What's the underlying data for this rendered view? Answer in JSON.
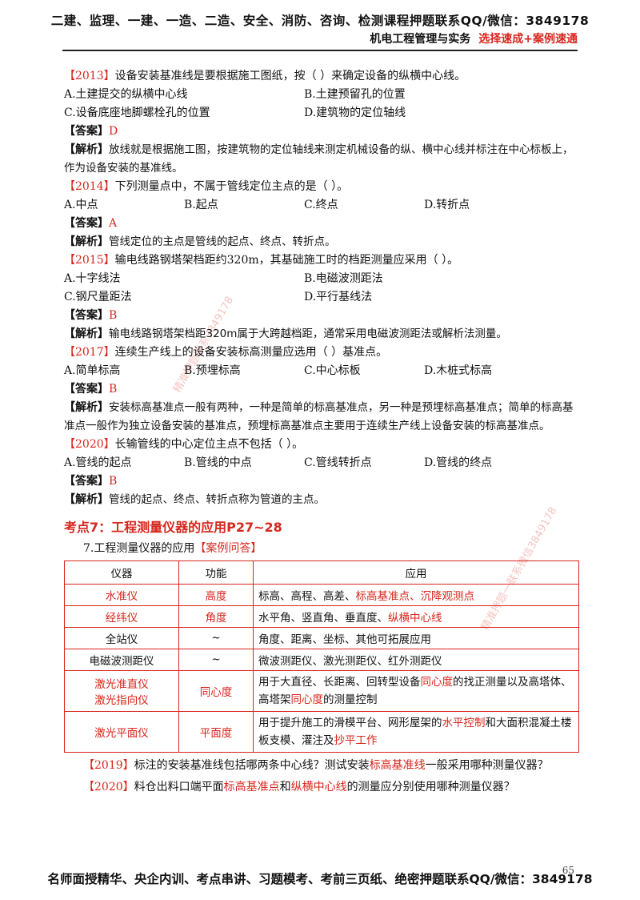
{
  "header": {
    "line1": "二建、监理、一建、一造、二造、安全、消防、咨询、检测课程押题联系QQ/微信：3849178",
    "subject": "机电工程管理与实务",
    "tagline": "选择速成+案例速通"
  },
  "q2013": {
    "year": "【2013】",
    "stem": "设备安装基准线是要根据施工图纸，按（      ）来确定设备的纵横中心线。",
    "a": "A.土建提交的纵横中心线",
    "b": "B.土建预留孔的位置",
    "c": "C.设备底座地脚螺栓孔的位置",
    "d": "D.建筑物的定位轴线",
    "ans_label": "【答案】",
    "ans": "D",
    "exp_label": "【解析】",
    "exp": "放线就是根据施工图，按建筑物的定位轴线来测定机械设备的纵、横中心线并标注在中心标板上，作为设备安装的基准线。"
  },
  "q2014": {
    "year": "【2014】",
    "stem": "下列测量点中，不属于管线定位主点的是（      ）。",
    "a": "A.中点",
    "b": "B.起点",
    "c": "C.终点",
    "d": "D.转折点",
    "ans_label": "【答案】",
    "ans": "A",
    "exp_label": "【解析】",
    "exp": "管线定位的主点是管线的起点、终点、转折点。"
  },
  "q2015": {
    "year": "【2015】",
    "stem": "输电线路钢塔架档距约320m，其基础施工时的档距测量应采用（      ）。",
    "a": "A.十字线法",
    "b": "B.电磁波测距法",
    "c": "C.钢尺量距法",
    "d": "D.平行基线法",
    "ans_label": "【答案】",
    "ans": "B",
    "exp_label": "【解析】",
    "exp": "输电线路钢塔架档距320m属于大跨越档距，通常采用电磁波测距法或解析法测量。"
  },
  "q2017": {
    "year": "【2017】",
    "stem": "连续生产线上的设备安装标高测量应选用（      ）基准点。",
    "a": "A.简单标高",
    "b": "B.预埋标高",
    "c": "C.中心标板",
    "d": "D.木桩式标高",
    "ans_label": "【答案】",
    "ans": "B",
    "exp_label": "【解析】",
    "exp": "安装标高基准点一般有两种，一种是简单的标高基准点，另一种是预埋标高基准点；简单的标高基准点一般作为独立设备安装的基准点，预埋标高基准点主要用于连续生产线上设备安装的标高基准点。"
  },
  "q2020": {
    "year": "【2020】",
    "stem": "长输管线的中心定位主点不包括（      ）。",
    "a": "A.管线的起点",
    "b": "B.管线的中点",
    "c": "C.管线转折点",
    "d": "D.管线的终点",
    "ans_label": "【答案】",
    "ans": "B",
    "exp_label": "【解析】",
    "exp": "管线的起点、终点、转折点称为管道的主点。"
  },
  "section": {
    "title": "考点7：工程测量仪器的应用P27~28",
    "sub_prefix": "7.工程测量仪器的应用",
    "sub_tag": "【案例问答】"
  },
  "table": {
    "headers": [
      "仪器",
      "功能",
      "应用"
    ],
    "rows": [
      {
        "inst": "水准仪",
        "func": "高度",
        "app_plain": "标高、高程、高差、",
        "app_red": "标高基准点、沉降观测点"
      },
      {
        "inst": "经纬仪",
        "func": "角度",
        "app_plain": "水平角、竖直角、垂直度、",
        "app_red": "纵横中心线"
      },
      {
        "inst": "全站仪",
        "func": "~",
        "app_plain": "角度、距离、坐标、其他可拓展应用",
        "app_red": ""
      },
      {
        "inst": "电磁波测距仪",
        "func": "~",
        "app_plain": "微波测距仪、激光测距仪、红外测距仪",
        "app_red": ""
      }
    ],
    "row5": {
      "inst1": "激光准直仪",
      "inst2": "激光指向仪",
      "func": "同心度",
      "t1": "用于大直径、长距离、回转型设备",
      "t2": "同心度",
      "t3": "的找正测量以及高塔体、高塔架",
      "t4": "同心度",
      "t5": "的测量控制"
    },
    "row6": {
      "inst": "激光平面仪",
      "func": "平面度",
      "t1": "用于提升施工的滑模平台、网形屋架的",
      "t2": "水平控制",
      "t3": "和大面积混凝土楼板支模、灌注及",
      "t4": "抄平工作"
    }
  },
  "case2019": {
    "year": "【2019】",
    "t1": "标注的安装基准线包括哪两条中心线？测试安装",
    "t2": "标高基准线",
    "t3": "一般采用哪种测量仪器？"
  },
  "case2020": {
    "year": "【2020】",
    "t1": "料仓出料口端平面",
    "t2": "标高基准点",
    "t3": "和",
    "t4": "纵横中心线",
    "t5": "的测量应分别使用哪种测量仪器？"
  },
  "footer": "名师面授精华、央企内训、考点串讲、习题模考、考前三页纸、绝密押题联系QQ/微信：3849178",
  "page_number": "65",
  "watermarks": [
    "精准押题联系3849178",
    "精准押题一联系微信3849178"
  ]
}
